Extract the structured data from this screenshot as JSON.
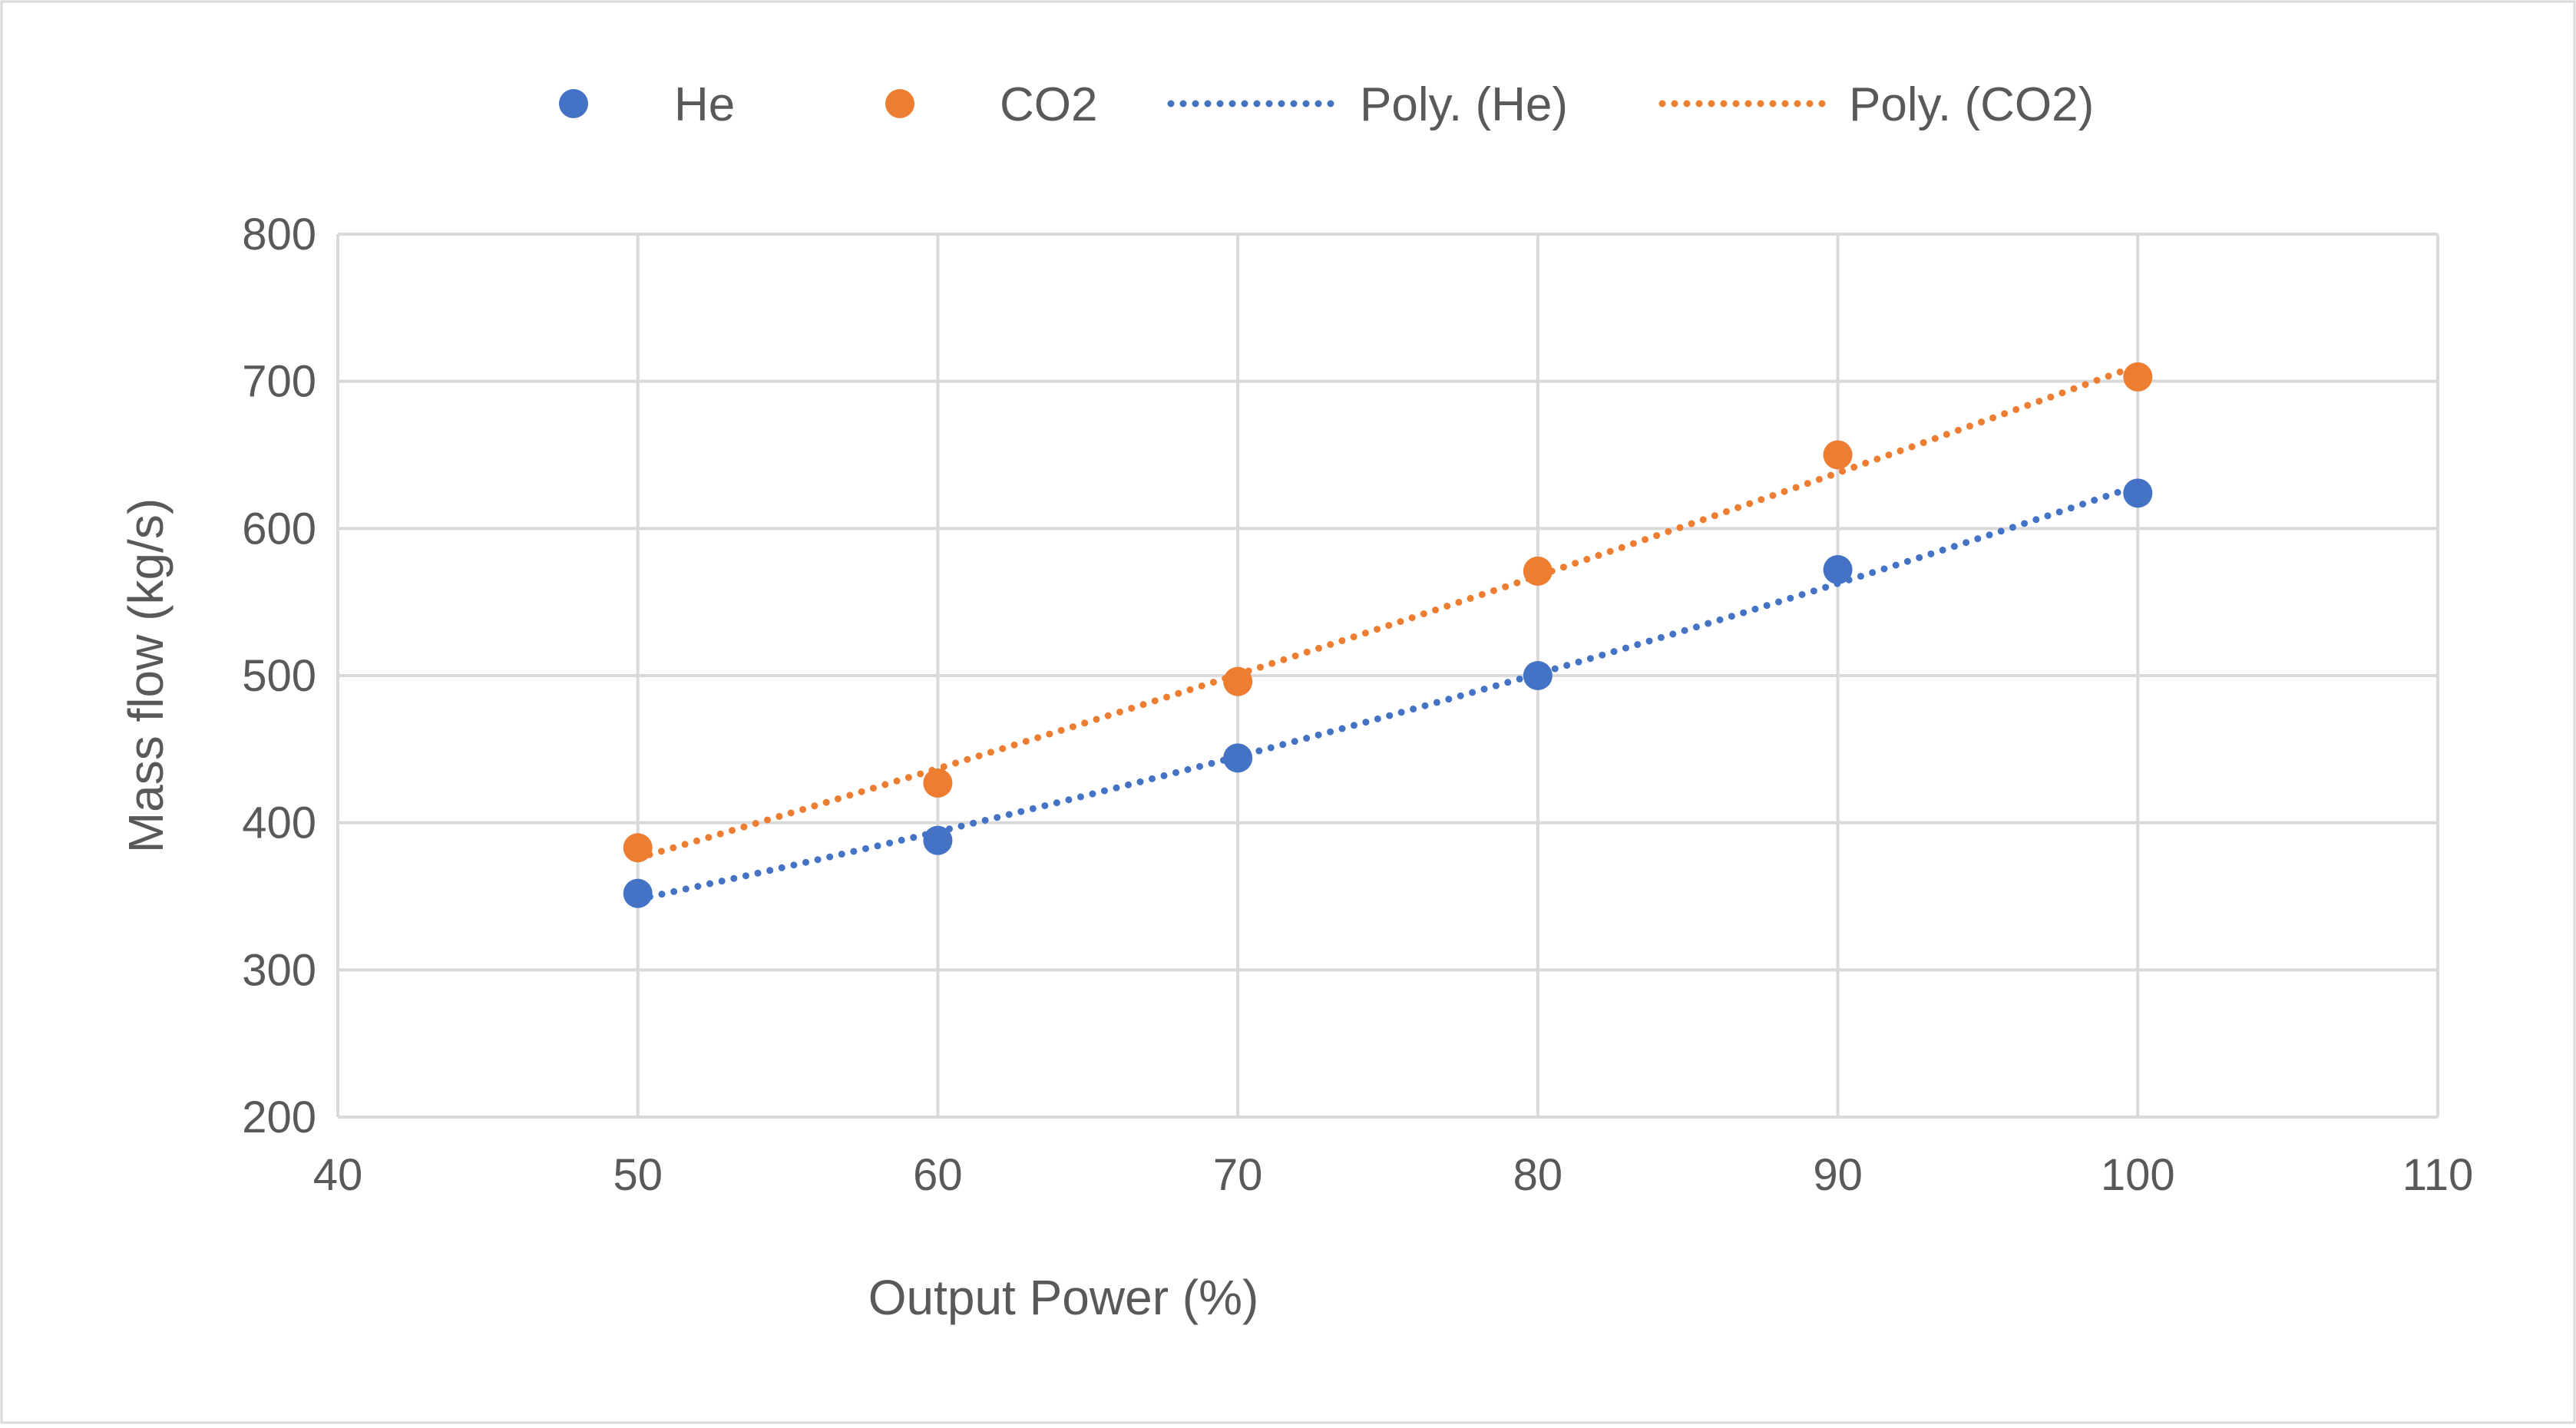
{
  "chart_data": {
    "type": "scatter",
    "title": "",
    "xlabel": "Output Power (%)",
    "ylabel": "Mass flow (kg/s)",
    "xlim": [
      40,
      110
    ],
    "ylim": [
      200,
      800
    ],
    "xticks": [
      40,
      50,
      60,
      70,
      80,
      90,
      100,
      110
    ],
    "yticks": [
      200,
      300,
      400,
      500,
      600,
      700,
      800
    ],
    "grid": true,
    "legend_position": "top",
    "series": [
      {
        "name": "He",
        "color": "#4472C4",
        "x": [
          50,
          60,
          70,
          80,
          90,
          100
        ],
        "values": [
          352,
          388,
          444,
          500,
          572,
          624
        ],
        "trendline": {
          "name": "Poly. (He)",
          "type": "polynomial",
          "order": 2
        }
      },
      {
        "name": "CO2",
        "color": "#ED7D31",
        "x": [
          50,
          60,
          70,
          80,
          90,
          100
        ],
        "values": [
          383,
          427,
          496,
          571,
          650,
          703
        ],
        "trendline": {
          "name": "Poly. (CO2)",
          "type": "polynomial",
          "order": 2
        }
      }
    ],
    "legend": [
      {
        "label": "He",
        "kind": "marker",
        "color": "#4472C4"
      },
      {
        "label": "CO2",
        "kind": "marker",
        "color": "#ED7D31"
      },
      {
        "label": "Poly. (He)",
        "kind": "dotted-line",
        "color": "#4472C4"
      },
      {
        "label": "Poly. (CO2)",
        "kind": "dotted-line",
        "color": "#ED7D31"
      }
    ]
  }
}
